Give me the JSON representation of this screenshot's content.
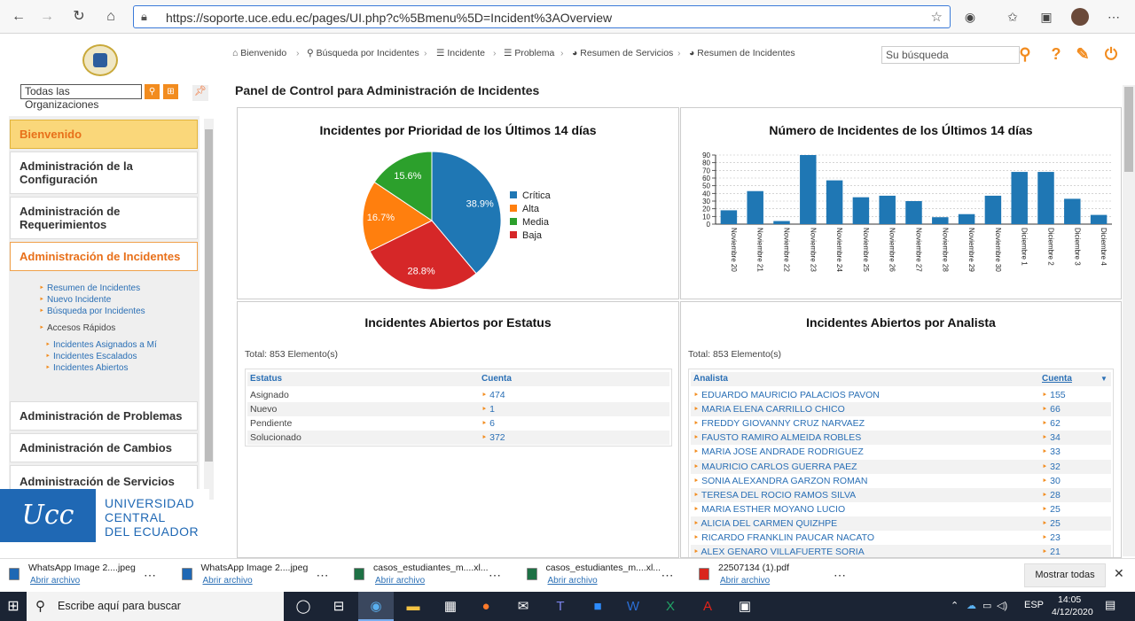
{
  "browser": {
    "url": "https://soporte.uce.edu.ec/pages/UI.php?c%5Bmenu%5D=Incident%3AOverview"
  },
  "sidebar": {
    "org_select": "Todas las Organizaciones",
    "menu": [
      {
        "label": "Bienvenido"
      },
      {
        "label": "Administración de la Configuración"
      },
      {
        "label": "Administración de Requerimientos"
      },
      {
        "label": "Administración de Incidentes"
      },
      {
        "label": "Administración de Problemas"
      },
      {
        "label": "Administración de Cambios"
      },
      {
        "label": "Administración de Servicios"
      }
    ],
    "incident_links": [
      "Resumen de Incidentes",
      "Nuevo Incidente",
      "Búsqueda por Incidentes"
    ],
    "quick_access_label": "Accesos Rápidos",
    "quick_links": [
      "Incidentes Asignados a Mí",
      "Incidentes Escalados",
      "Incidentes Abiertos"
    ],
    "logo_lines": [
      "UNIVERSIDAD",
      "CENTRAL",
      "DEL ECUADOR"
    ]
  },
  "breadcrumb": [
    "Bienvenido",
    "Búsqueda por Incidentes",
    "Incidente",
    "Problema",
    "Resumen de Servicios",
    "Resumen de Incidentes"
  ],
  "header": {
    "search_placeholder": "Su búsqueda"
  },
  "page_title": "Panel de Control para Administración de Incidentes",
  "panels": {
    "priority_title": "Incidentes por Prioridad de los Últimos 14 días",
    "count_title": "Número de Incidentes de los Últimos 14 días",
    "status_title": "Incidentes Abiertos por Estatus",
    "analyst_title": "Incidentes Abiertos por Analista"
  },
  "chart_data": [
    {
      "type": "pie",
      "title": "Incidentes por Prioridad de los Últimos 14 días",
      "legend_position": "right",
      "slices": [
        {
          "label": "Crítica",
          "value": 38.9,
          "display": "38.9%",
          "color": "#1f77b4"
        },
        {
          "label": "Baja",
          "value": 28.8,
          "display": "28.8%",
          "color": "#d62728"
        },
        {
          "label": "Alta",
          "value": 16.7,
          "display": "16.7%",
          "color": "#ff7f0e"
        },
        {
          "label": "Media",
          "value": 15.6,
          "display": "15.6%",
          "color": "#2ca02c"
        }
      ],
      "legend": [
        {
          "label": "Crítica",
          "color": "#1f77b4"
        },
        {
          "label": "Alta",
          "color": "#ff7f0e"
        },
        {
          "label": "Media",
          "color": "#2ca02c"
        },
        {
          "label": "Baja",
          "color": "#d62728"
        }
      ]
    },
    {
      "type": "bar",
      "title": "Número de Incidentes de los Últimos 14 días",
      "categories": [
        "Noviembre 20",
        "Noviembre 21",
        "Noviembre 22",
        "Noviembre 23",
        "Noviembre 24",
        "Noviembre 25",
        "Noviembre 26",
        "Noviembre 27",
        "Noviembre 28",
        "Noviembre 29",
        "Noviembre 30",
        "Diciembre 1",
        "Diciembre 2",
        "Diciembre 3",
        "Diciembre 4"
      ],
      "values": [
        18,
        43,
        4,
        90,
        57,
        35,
        37,
        30,
        9,
        13,
        37,
        68,
        68,
        33,
        12
      ],
      "ylim": [
        0,
        90
      ],
      "yticks": [
        "0",
        "10",
        "20",
        "30",
        "40",
        "50",
        "60",
        "70",
        "80",
        "90"
      ],
      "grid": true,
      "color": "#1f77b4"
    }
  ],
  "status_table": {
    "total": "Total: 853 Elemento(s)",
    "headers": [
      "Estatus",
      "Cuenta"
    ],
    "rows": [
      {
        "status": "Asignado",
        "count": "474"
      },
      {
        "status": "Nuevo",
        "count": "1"
      },
      {
        "status": "Pendiente",
        "count": "6"
      },
      {
        "status": "Solucionado",
        "count": "372"
      }
    ]
  },
  "analyst_table": {
    "total": "Total: 853 Elemento(s)",
    "headers": [
      "Analista",
      "Cuenta"
    ],
    "rows": [
      {
        "name": "EDUARDO MAURICIO PALACIOS PAVON",
        "count": "155"
      },
      {
        "name": "MARIA ELENA CARRILLO CHICO",
        "count": "66"
      },
      {
        "name": "FREDDY GIOVANNY CRUZ NARVAEZ",
        "count": "62"
      },
      {
        "name": "FAUSTO RAMIRO ALMEIDA ROBLES",
        "count": "34"
      },
      {
        "name": "MARIA JOSE ANDRADE RODRIGUEZ",
        "count": "33"
      },
      {
        "name": "MAURICIO CARLOS GUERRA PAEZ",
        "count": "32"
      },
      {
        "name": "SONIA ALEXANDRA GARZON ROMAN",
        "count": "30"
      },
      {
        "name": "TERESA DEL ROCIO RAMOS SILVA",
        "count": "28"
      },
      {
        "name": "MARIA ESTHER MOYANO LUCIO",
        "count": "25"
      },
      {
        "name": "ALICIA DEL CARMEN QUIZHPE",
        "count": "25"
      },
      {
        "name": "RICARDO FRANKLIN PAUCAR NACATO",
        "count": "23"
      },
      {
        "name": "ALEX GENARO VILLAFUERTE SORIA",
        "count": "21"
      }
    ]
  },
  "downloads": {
    "items": [
      {
        "name": "WhatsApp Image 2....jpeg",
        "action": "Abrir archivo",
        "icon": "image-file-icon",
        "color": "#1f68b4"
      },
      {
        "name": "WhatsApp Image 2....jpeg",
        "action": "Abrir archivo",
        "icon": "image-file-icon",
        "color": "#1f68b4"
      },
      {
        "name": "casos_estudiantes_m....xl...",
        "action": "Abrir archivo",
        "icon": "excel-file-icon",
        "color": "#1e7145"
      },
      {
        "name": "casos_estudiantes_m....xl...",
        "action": "Abrir archivo",
        "icon": "excel-file-icon",
        "color": "#1e7145"
      },
      {
        "name": "22507134 (1).pdf",
        "action": "Abrir archivo",
        "icon": "pdf-file-icon",
        "color": "#d9261c"
      }
    ],
    "show_all": "Mostrar todas"
  },
  "taskbar": {
    "search_text": "Escribe aquí para buscar",
    "lang": "ESP",
    "time": "14:05",
    "date": "4/12/2020"
  }
}
